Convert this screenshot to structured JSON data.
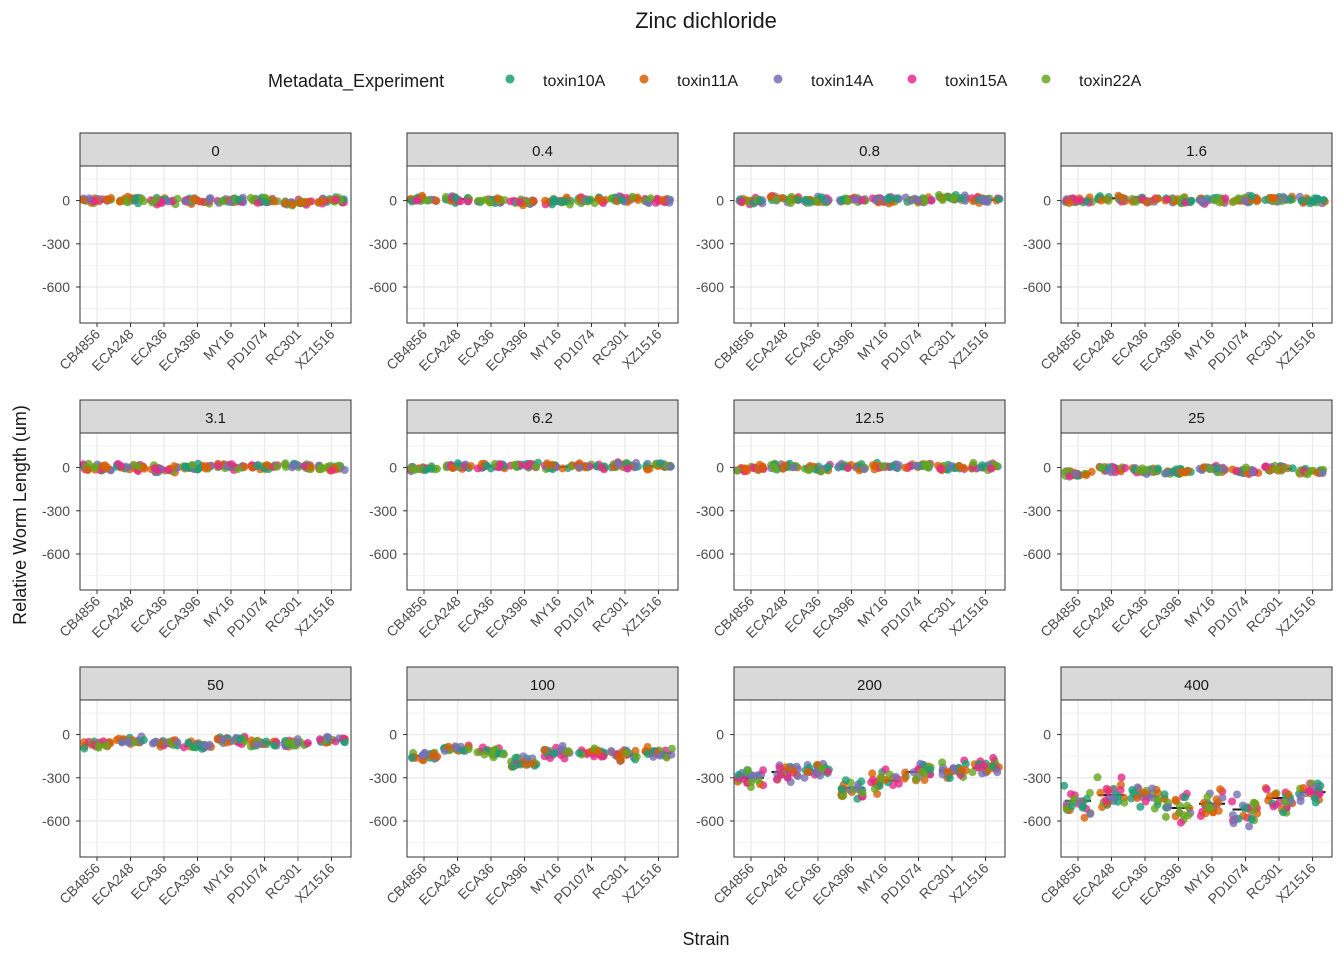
{
  "chart_data": {
    "type": "scatter",
    "title": "Zinc dichloride",
    "xlabel": "Strain",
    "ylabel": "Relative Worm Length (um)",
    "legend_title": "Metadata_Experiment",
    "legend_position": "top",
    "ylim": [
      -850,
      240
    ],
    "y_ticks": [
      0,
      -300,
      -600
    ],
    "y_tick_labels": [
      "0",
      "-300",
      "-600"
    ],
    "strains": [
      "CB4856",
      "ECA248",
      "ECA36",
      "ECA396",
      "MY16",
      "PD1074",
      "RC301",
      "XZ1516"
    ],
    "series": [
      {
        "name": "toxin10A",
        "color": "#1b9e77"
      },
      {
        "name": "toxin11A",
        "color": "#d95f02"
      },
      {
        "name": "toxin14A",
        "color": "#7570b3"
      },
      {
        "name": "toxin15A",
        "color": "#e7298a"
      },
      {
        "name": "toxin22A",
        "color": "#66a61e"
      }
    ],
    "panels": [
      {
        "label": "0",
        "medians": [
          0,
          5,
          -5,
          0,
          0,
          0,
          -10,
          0
        ]
      },
      {
        "label": "0.4",
        "medians": [
          5,
          10,
          0,
          -10,
          -5,
          5,
          10,
          0
        ]
      },
      {
        "label": "0.8",
        "medians": [
          0,
          10,
          0,
          5,
          0,
          0,
          15,
          5
        ]
      },
      {
        "label": "1.6",
        "medians": [
          0,
          15,
          5,
          0,
          0,
          5,
          10,
          0
        ]
      },
      {
        "label": "3.1",
        "medians": [
          0,
          0,
          -10,
          5,
          10,
          5,
          10,
          0
        ]
      },
      {
        "label": "6.2",
        "medians": [
          -10,
          10,
          10,
          15,
          5,
          10,
          15,
          10
        ]
      },
      {
        "label": "12.5",
        "medians": [
          -10,
          10,
          -5,
          0,
          10,
          10,
          5,
          5
        ]
      },
      {
        "label": "25",
        "medians": [
          -40,
          -10,
          -20,
          -30,
          -10,
          -30,
          -10,
          -30
        ]
      },
      {
        "label": "50",
        "medians": [
          -70,
          -40,
          -60,
          -80,
          -40,
          -60,
          -60,
          -40
        ]
      },
      {
        "label": "100",
        "medians": [
          -150,
          -100,
          -120,
          -200,
          -120,
          -130,
          -140,
          -130
        ]
      },
      {
        "label": "200",
        "medians": [
          -300,
          -260,
          -250,
          -370,
          -320,
          -260,
          -250,
          -230
        ]
      },
      {
        "label": "400",
        "medians": [
          -460,
          -420,
          -430,
          -510,
          -480,
          -520,
          -440,
          -400
        ]
      }
    ]
  }
}
